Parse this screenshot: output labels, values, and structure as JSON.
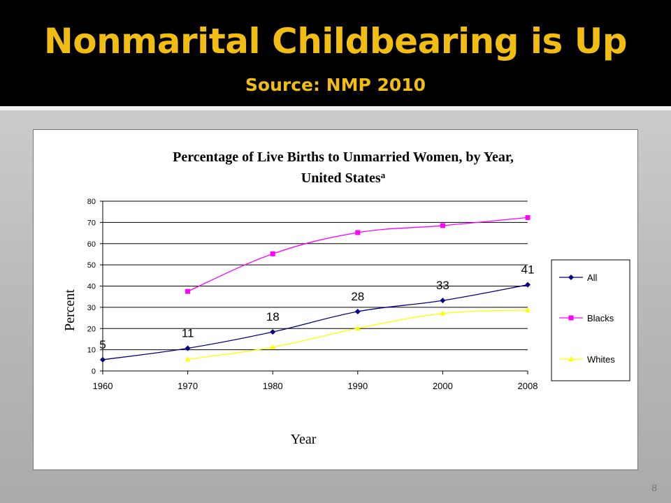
{
  "slide": {
    "title": "Nonmarital Childbearing is Up",
    "subtitle": "Source: NMP 2010",
    "page_number": "8"
  },
  "colors": {
    "header_bg": "#000000",
    "title_color": "#f1bd12",
    "all": "#000080",
    "blacks": "#ff00ff",
    "whites": "#ffff00"
  },
  "chart_data": {
    "type": "line",
    "title_line1": "Percentage of Live Births to Unmarried Women, by Year,",
    "title_line2": "United States",
    "title_superscript": "a",
    "xlabel": "Year",
    "ylabel": "Percent",
    "categories": [
      "1960",
      "1970",
      "1980",
      "1990",
      "2000",
      "2008"
    ],
    "yticks": [
      "0",
      "10",
      "20",
      "30",
      "40",
      "50",
      "60",
      "70",
      "80"
    ],
    "ylim": [
      0,
      80
    ],
    "grid": true,
    "legend_position": "right",
    "series": [
      {
        "name": "All",
        "values": [
          5.3,
          10.7,
          18.4,
          28.0,
          33.2,
          40.6
        ],
        "marker": "diamond",
        "color": "#000080"
      },
      {
        "name": "Blacks",
        "values": [
          null,
          37.5,
          55.2,
          65.2,
          68.5,
          72.3
        ],
        "marker": "square",
        "color": "#ff00ff"
      },
      {
        "name": "Whites",
        "values": [
          null,
          5.5,
          11.2,
          20.1,
          27.1,
          28.7
        ],
        "marker": "triangle",
        "color": "#ffff00"
      }
    ],
    "data_labels": [
      "5",
      "11",
      "18",
      "28",
      "33",
      "41"
    ]
  }
}
